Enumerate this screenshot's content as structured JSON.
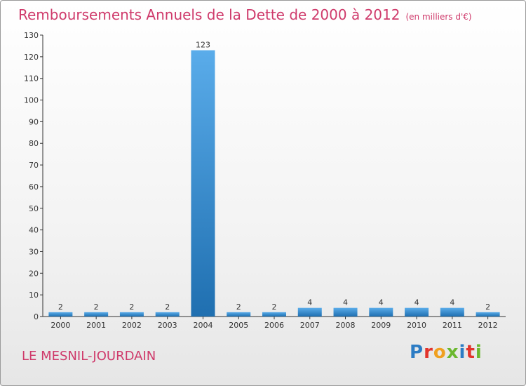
{
  "header": {
    "title": "Remboursements Annuels de la Dette de 2000 à 2012",
    "unit": "(en milliers d'€)"
  },
  "footer": {
    "commune": "LE MESNIL-JOURDAIN",
    "logo": "Proxiti",
    "logo_colors": [
      "#2c7cc4",
      "#e2342c",
      "#f0a020",
      "#6bb82f",
      "#2c7cc4",
      "#e2342c",
      "#6bb82f"
    ]
  },
  "colors": {
    "bar_top": "#5aacea",
    "bar_bottom": "#1f6fb0",
    "title": "#cf3a6b",
    "axis": "#333333"
  },
  "chart_data": {
    "type": "bar",
    "title": "Remboursements Annuels de la Dette de 2000 à 2012",
    "xlabel": "",
    "ylabel": "",
    "categories": [
      "2000",
      "2001",
      "2002",
      "2003",
      "2004",
      "2005",
      "2006",
      "2007",
      "2008",
      "2009",
      "2010",
      "2011",
      "2012"
    ],
    "values": [
      2,
      2,
      2,
      2,
      123,
      2,
      2,
      4,
      4,
      4,
      4,
      4,
      2
    ],
    "ylim": [
      0,
      130
    ],
    "yticks": [
      0,
      10,
      20,
      30,
      40,
      50,
      60,
      70,
      80,
      90,
      100,
      110,
      120,
      130
    ],
    "grid": false,
    "legend": "none"
  }
}
